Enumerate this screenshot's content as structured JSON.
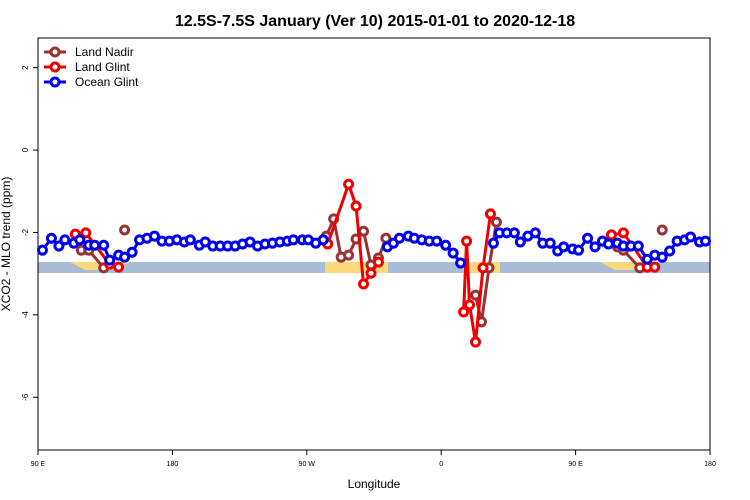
{
  "chart_data": {
    "type": "line",
    "title": "12.5S-7.5S January (Ver 10)   2015-01-01 to 2020-12-18",
    "x_label": "Longitude",
    "y_label": "XCO2 - MLO trend (ppm)",
    "xlim": [
      90,
      540
    ],
    "ylim": [
      -7.28,
      2.72
    ],
    "xticks": [
      {
        "value": 90,
        "label": "90 E"
      },
      {
        "value": 180,
        "label": "180"
      },
      {
        "value": 270,
        "label": "90 W"
      },
      {
        "value": 360,
        "label": "0"
      },
      {
        "value": 450,
        "label": "90 E"
      },
      {
        "value": 540,
        "label": "180"
      }
    ],
    "yticks": [
      -6,
      -4,
      -2,
      0,
      2
    ],
    "legend": "top-left",
    "series": [
      {
        "name": "Land Nadir",
        "color": "#993333",
        "x": [
          119,
          124,
          134,
          null,
          148,
          null,
          283,
          288,
          293,
          298,
          303,
          308,
          313,
          318,
          323,
          null,
          383,
          387,
          392,
          397,
          null,
          478,
          482,
          493,
          null,
          508
        ],
        "values": [
          -2.43,
          -2.43,
          -2.86,
          null,
          -1.94,
          null,
          -2.09,
          -1.67,
          -2.6,
          -2.55,
          -2.16,
          -1.97,
          -2.79,
          -2.62,
          -2.14,
          null,
          -3.52,
          -4.17,
          -2.86,
          -1.75,
          null,
          -2.35,
          -2.43,
          -2.86,
          null,
          -1.94
        ]
      },
      {
        "name": "Land Glint",
        "color": "#ee0000",
        "x": [
          115,
          122,
          138,
          144,
          null,
          284,
          298,
          303,
          308,
          313,
          318,
          null,
          375,
          377,
          379,
          383,
          388,
          393,
          null,
          474,
          482,
          498,
          503
        ],
        "values": [
          -2.04,
          -2.01,
          -2.77,
          -2.84,
          null,
          -2.28,
          -0.83,
          -1.36,
          -3.25,
          -2.99,
          -2.72,
          null,
          -3.93,
          -2.21,
          -3.76,
          -4.66,
          -2.86,
          -1.55,
          null,
          -2.06,
          -2.01,
          -2.84,
          -2.84
        ]
      },
      {
        "name": "Ocean Glint",
        "color": "#0000ee",
        "x": [
          93,
          99,
          104,
          108,
          114,
          118,
          124,
          128,
          134,
          138,
          144,
          148,
          153,
          158,
          163,
          168,
          173,
          178,
          183,
          188,
          192,
          198,
          202,
          207,
          212,
          217,
          222,
          227,
          232,
          237,
          242,
          247,
          252,
          257,
          261,
          267,
          271,
          276,
          281,
          null,
          324,
          328,
          332,
          338,
          342,
          347,
          352,
          357,
          363,
          368,
          373,
          null,
          395,
          399,
          404,
          409,
          413,
          418,
          423,
          428,
          433,
          438,
          442,
          448,
          452,
          458,
          463,
          468,
          472,
          478,
          482,
          487,
          492,
          498,
          503,
          508,
          513,
          518,
          523,
          527,
          533,
          537
        ],
        "values": [
          -2.43,
          -2.14,
          -2.33,
          -2.18,
          -2.26,
          -2.18,
          -2.31,
          -2.31,
          -2.31,
          -2.67,
          -2.55,
          -2.6,
          -2.48,
          -2.18,
          -2.14,
          -2.09,
          -2.21,
          -2.21,
          -2.18,
          -2.23,
          -2.18,
          -2.31,
          -2.23,
          -2.33,
          -2.33,
          -2.33,
          -2.33,
          -2.28,
          -2.23,
          -2.33,
          -2.28,
          -2.26,
          -2.23,
          -2.21,
          -2.18,
          -2.18,
          -2.18,
          -2.26,
          -2.18,
          null,
          -2.35,
          -2.26,
          -2.14,
          -2.09,
          -2.14,
          -2.18,
          -2.21,
          -2.21,
          -2.31,
          -2.5,
          -2.74,
          null,
          -2.26,
          -2.01,
          -2.01,
          -2.01,
          -2.23,
          -2.09,
          -2.01,
          -2.26,
          -2.26,
          -2.45,
          -2.35,
          -2.4,
          -2.43,
          -2.14,
          -2.35,
          -2.21,
          -2.28,
          -2.26,
          -2.33,
          -2.33,
          -2.33,
          -2.65,
          -2.55,
          -2.6,
          -2.45,
          -2.21,
          -2.18,
          -2.11,
          -2.23,
          -2.21
        ]
      }
    ]
  }
}
